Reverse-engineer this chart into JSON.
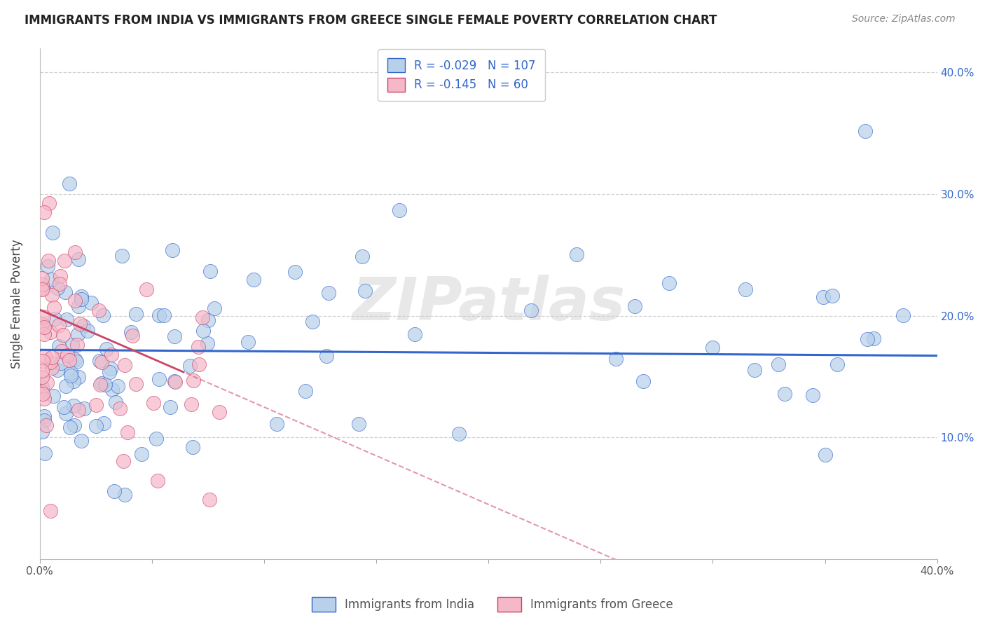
{
  "title": "IMMIGRANTS FROM INDIA VS IMMIGRANTS FROM GREECE SINGLE FEMALE POVERTY CORRELATION CHART",
  "source": "Source: ZipAtlas.com",
  "ylabel": "Single Female Poverty",
  "india_R": -0.029,
  "india_N": 107,
  "greece_R": -0.145,
  "greece_N": 60,
  "india_color": "#b8d0ea",
  "greece_color": "#f5b8c8",
  "india_line_color": "#3366cc",
  "greece_line_color": "#cc4466",
  "watermark": "ZIPatlas",
  "legend_india": "Immigrants from India",
  "legend_greece": "Immigrants from Greece",
  "xlim": [
    0.0,
    0.4
  ],
  "ylim": [
    0.0,
    0.42
  ],
  "x_ticks": [
    0.0,
    0.05,
    0.1,
    0.15,
    0.2,
    0.25,
    0.3,
    0.35,
    0.4
  ],
  "y_ticks": [
    0.1,
    0.2,
    0.3,
    0.4
  ],
  "y_tick_labels": [
    "10.0%",
    "20.0%",
    "30.0%",
    "40.0%"
  ],
  "india_trend_intercept": 0.172,
  "india_trend_slope": -0.012,
  "greece_trend_intercept": 0.205,
  "greece_trend_slope": -0.8
}
